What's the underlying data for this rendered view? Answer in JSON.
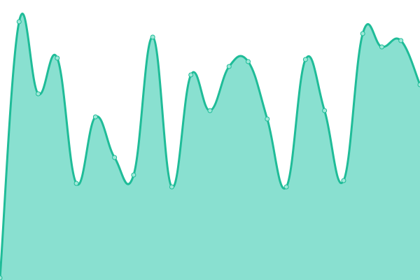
{
  "chart_data": {
    "type": "area",
    "title": "",
    "xlabel": "",
    "ylabel": "",
    "x": [
      0,
      1,
      2,
      3,
      4,
      5,
      6,
      7,
      8,
      9,
      10,
      11,
      12,
      13,
      14,
      15,
      16,
      17,
      18,
      19,
      20,
      21,
      22
    ],
    "series": [
      {
        "values": [
          3,
          369,
          266,
          317,
          138,
          233,
          175,
          150,
          347,
          133,
          293,
          242,
          305,
          312,
          230,
          133,
          315,
          242,
          142,
          352,
          333,
          342,
          279
        ]
      }
    ],
    "ylim": [
      0,
      400
    ],
    "grid": false,
    "legend": "none",
    "colors": {
      "line": "#1fbc98",
      "fill": "#89e0d0",
      "point_fill": "#9ee8d8"
    }
  }
}
